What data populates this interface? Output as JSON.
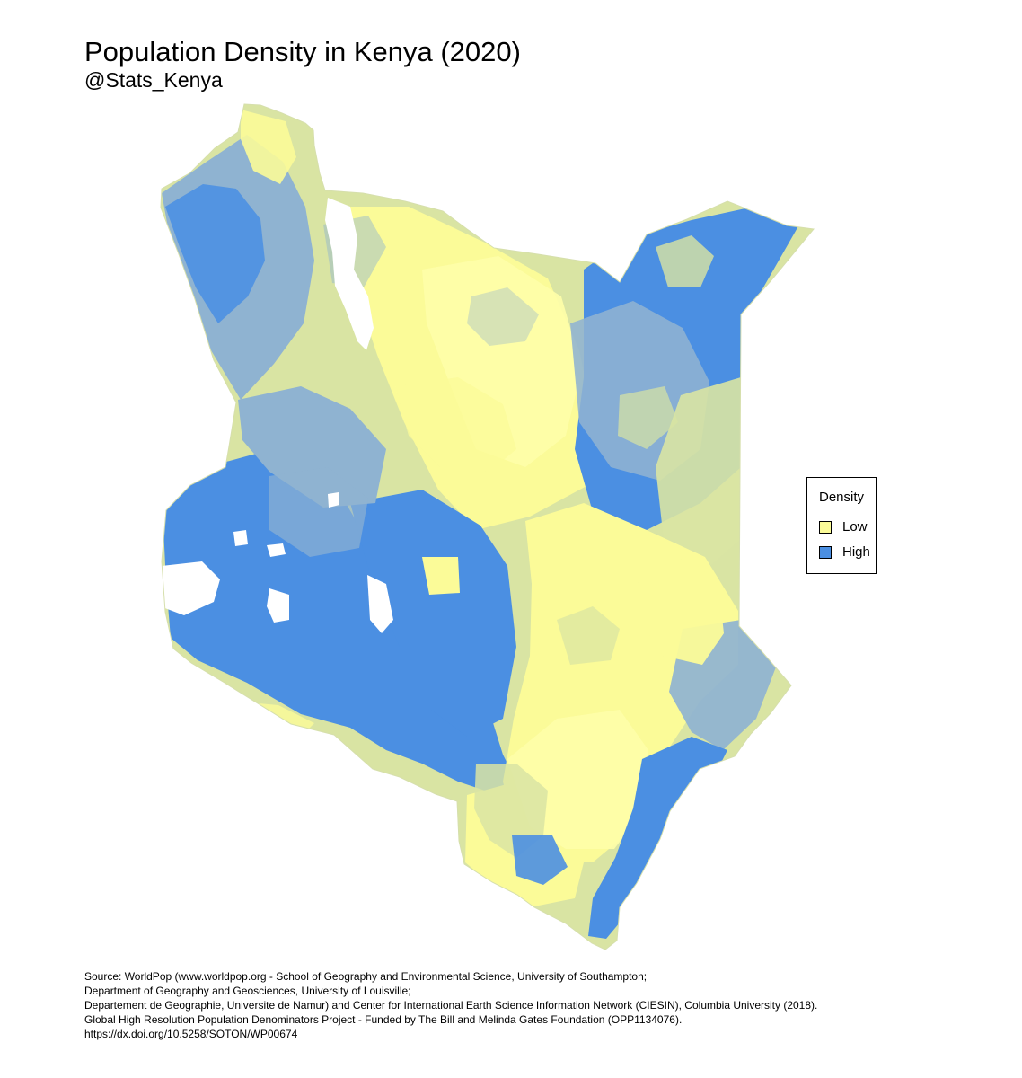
{
  "map": {
    "title": "Population Density in Kenya (2020)",
    "subtitle": "@Stats_Kenya",
    "legend": {
      "title": "Density",
      "items": [
        {
          "label": "Low",
          "color": "#fbfb98"
        },
        {
          "label": "High",
          "color": "#4b8fe2"
        }
      ]
    },
    "colors": {
      "low": "#fbfb98",
      "low_mid": "#d9e4a3",
      "mid": "#8fb3d1",
      "high": "#4b8fe2",
      "water": "#ffffff"
    },
    "source_lines": [
      "Source: WorldPop (www.worldpop.org - School of Geography and Environmental Science, University of Southampton;",
      "Department of Geography and Geosciences, University of Louisville;",
      "Departement de Geographie, Universite de Namur) and Center for International Earth Science Information Network (CIESIN), Columbia University (2018).",
      "Global High Resolution Population Denominators Project - Funded by The Bill and Melinda Gates Foundation (OPP1134076).",
      "https://dx.doi.org/10.5258/SOTON/WP00674"
    ]
  }
}
